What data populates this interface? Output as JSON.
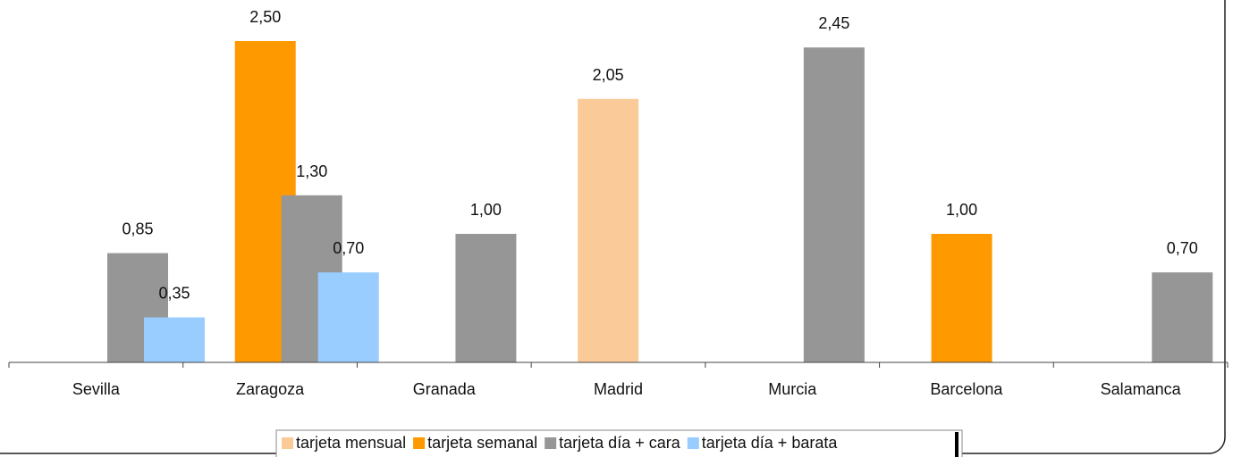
{
  "chart_data": {
    "type": "bar",
    "title": "",
    "xlabel": "",
    "ylabel": "",
    "ylim": [
      0,
      2.6
    ],
    "grid": false,
    "legend_position": "bottom",
    "categories": [
      "Sevilla",
      "Zaragoza",
      "Granada",
      "Madrid",
      "Murcia",
      "Barcelona",
      "Salamanca"
    ],
    "series": [
      {
        "name": "tarjeta mensual",
        "color": "#FACB98",
        "values": [
          null,
          null,
          null,
          2.05,
          null,
          null,
          null
        ],
        "labels": [
          null,
          null,
          null,
          "2,05",
          null,
          null,
          null
        ]
      },
      {
        "name": "tarjeta semanal",
        "color": "#FF9900",
        "values": [
          null,
          2.5,
          null,
          null,
          null,
          1.0,
          null
        ],
        "labels": [
          null,
          "2,50",
          null,
          null,
          null,
          "1,00",
          null
        ]
      },
      {
        "name": "tarjeta día + cara",
        "color": "#969696",
        "values": [
          0.85,
          1.3,
          1.0,
          null,
          2.45,
          null,
          0.7
        ],
        "labels": [
          "0,85",
          "1,30",
          "1,00",
          null,
          "2,45",
          null,
          "0,70"
        ]
      },
      {
        "name": "tarjeta día + barata",
        "color": "#99CCFF",
        "values": [
          0.35,
          0.7,
          null,
          null,
          null,
          null,
          null
        ],
        "labels": [
          "0,35",
          "0,70",
          null,
          null,
          null,
          null,
          null
        ]
      }
    ]
  }
}
